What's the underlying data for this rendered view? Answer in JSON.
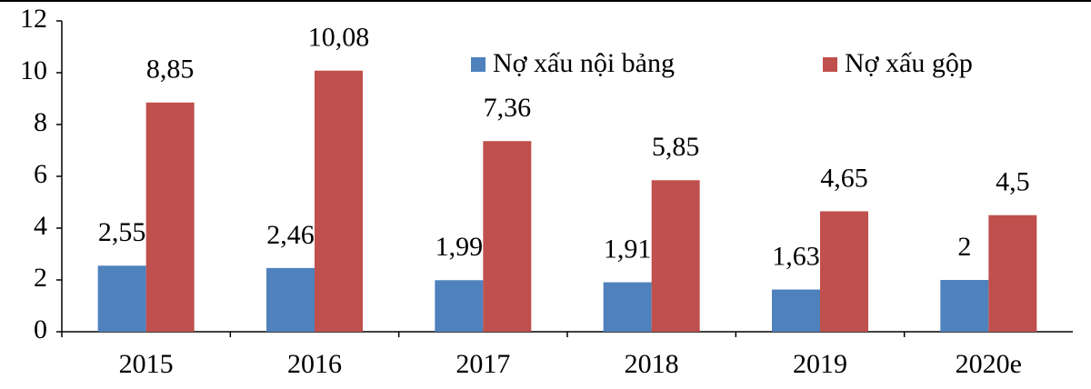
{
  "chart_data": {
    "type": "bar",
    "categories": [
      "2015",
      "2016",
      "2017",
      "2018",
      "2019",
      "2020e"
    ],
    "series": [
      {
        "name": "Nợ xấu nội bảng",
        "color": "#4f81bd",
        "values": [
          2.55,
          2.46,
          1.99,
          1.91,
          1.63,
          2
        ],
        "value_labels": [
          "2,55",
          "2,46",
          "1,99",
          "1,91",
          "1,63",
          "2"
        ]
      },
      {
        "name": "Nợ xấu gộp",
        "color": "#c0504d",
        "values": [
          8.85,
          10.08,
          7.36,
          5.85,
          4.65,
          4.5
        ],
        "value_labels": [
          "8,85",
          "10,08",
          "7,36",
          "5,85",
          "4,65",
          "4,5"
        ]
      }
    ],
    "ylim": [
      0,
      12
    ],
    "yticks": [
      0,
      2,
      4,
      6,
      8,
      10,
      12
    ],
    "grid": false,
    "legend": "top"
  }
}
